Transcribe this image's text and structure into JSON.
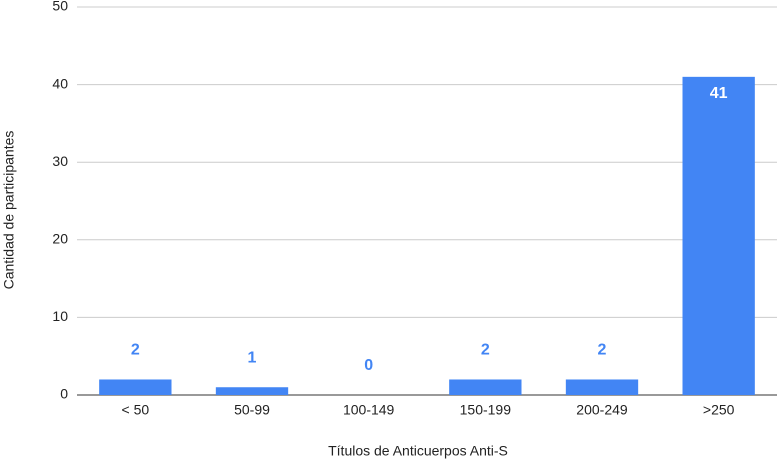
{
  "chart_data": {
    "type": "bar",
    "x_label": "Títulos de Anticuerpos Anti-S",
    "y_label": "Cantidad de participantes",
    "categories": [
      "< 50",
      "50-99",
      "100-149",
      "150-199",
      "200-249",
      ">250"
    ],
    "values": [
      2,
      1,
      0,
      2,
      2,
      41
    ],
    "color": "#4285f4",
    "ylim": [
      0,
      50
    ],
    "yticks": [
      0,
      10,
      20,
      30,
      40,
      50
    ],
    "grid": true
  }
}
